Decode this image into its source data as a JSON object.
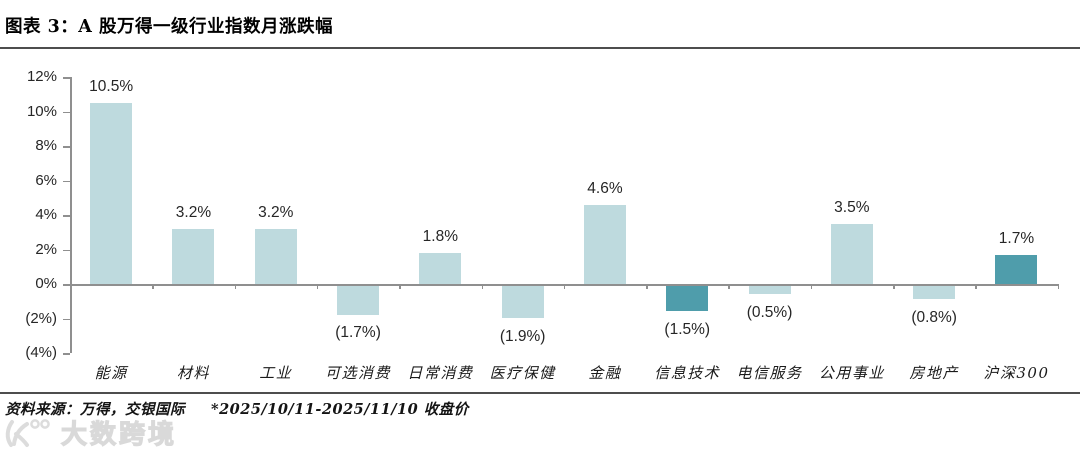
{
  "header": {
    "title": "图表 3：A 股万得一级行业指数月涨跌幅"
  },
  "footer": {
    "source": "资料来源：万得，交银国际",
    "note": "*2025/10/11-2025/11/10 收盘价"
  },
  "watermark": {
    "logo": "koo-circles-logo",
    "text": "大数跨境"
  },
  "colors": {
    "bar_light": "#bedade",
    "bar_dark": "#4f9dab",
    "axis": "#8f8f8f",
    "rule": "#4d4d4d",
    "text": "#262626",
    "watermark": "#d9d9d9"
  },
  "chart_data": {
    "type": "bar",
    "title": "A 股万得一级行业指数月涨跌幅",
    "categories": [
      "能源",
      "材料",
      "工业",
      "可选消费",
      "日常消费",
      "医疗保健",
      "金融",
      "信息技术",
      "电信服务",
      "公用事业",
      "房地产",
      "沪深300"
    ],
    "values": [
      10.5,
      3.2,
      3.2,
      -1.7,
      1.8,
      -1.9,
      4.6,
      -1.5,
      -0.5,
      3.5,
      -0.8,
      1.7
    ],
    "value_labels": [
      "10.5%",
      "3.2%",
      "3.2%",
      "(1.7%)",
      "1.8%",
      "(1.9%)",
      "4.6%",
      "(1.5%)",
      "(0.5%)",
      "3.5%",
      "(0.8%)",
      "1.7%"
    ],
    "highlight_indices": [
      7,
      11
    ],
    "bar_color": "#bedade",
    "highlight_color": "#4f9dab",
    "xlabel": "",
    "ylabel": "",
    "ylim": [
      -4,
      12
    ],
    "yticks": [
      {
        "label": "12%",
        "value": 12
      },
      {
        "label": "10%",
        "value": 10
      },
      {
        "label": "8%",
        "value": 8
      },
      {
        "label": "6%",
        "value": 6
      },
      {
        "label": "4%",
        "value": 4
      },
      {
        "label": "2%",
        "value": 2
      },
      {
        "label": "0%",
        "value": 0
      },
      {
        "label": "(2%)",
        "value": -2
      },
      {
        "label": "(4%)",
        "value": -4
      }
    ],
    "grid": false,
    "legend": false
  }
}
